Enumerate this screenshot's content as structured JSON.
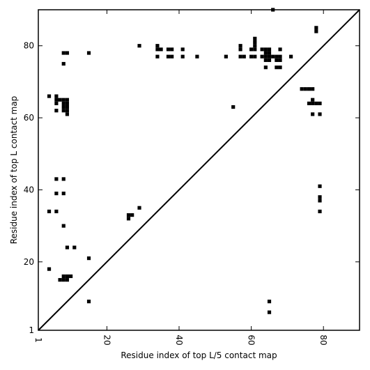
{
  "chart_data": {
    "type": "scatter",
    "marker": "square",
    "xlabel": "Residue index of top L/5 contact map",
    "ylabel": "Residue index of top L contact map",
    "xlim": [
      1,
      90
    ],
    "ylim": [
      1,
      90
    ],
    "x_ticks": [
      1,
      20,
      40,
      60,
      80
    ],
    "y_ticks": [
      1,
      20,
      40,
      60,
      80
    ],
    "diagonal": true,
    "grid": false,
    "colors": {
      "marker": "#000000",
      "axis": "#000000",
      "background": "#ffffff"
    },
    "points": [
      [
        66,
        90
      ],
      [
        78,
        85
      ],
      [
        78,
        84
      ],
      [
        29,
        80
      ],
      [
        34,
        80
      ],
      [
        57,
        80
      ],
      [
        61,
        82
      ],
      [
        61,
        81
      ],
      [
        61,
        80
      ],
      [
        8,
        78
      ],
      [
        9,
        78
      ],
      [
        15,
        78
      ],
      [
        34,
        79
      ],
      [
        35,
        79
      ],
      [
        37,
        79
      ],
      [
        38,
        79
      ],
      [
        41,
        79
      ],
      [
        57,
        79
      ],
      [
        60,
        79
      ],
      [
        61,
        79
      ],
      [
        63,
        79
      ],
      [
        64,
        79
      ],
      [
        65,
        79
      ],
      [
        68,
        79
      ],
      [
        34,
        77
      ],
      [
        37,
        77
      ],
      [
        38,
        77
      ],
      [
        41,
        77
      ],
      [
        45,
        77
      ],
      [
        53,
        77
      ],
      [
        57,
        77
      ],
      [
        58,
        77
      ],
      [
        60,
        77
      ],
      [
        61,
        77
      ],
      [
        63,
        77
      ],
      [
        64,
        77
      ],
      [
        65,
        77
      ],
      [
        66,
        77
      ],
      [
        67,
        77
      ],
      [
        68,
        77
      ],
      [
        71,
        77
      ],
      [
        64,
        78
      ],
      [
        65,
        78
      ],
      [
        64,
        76
      ],
      [
        65,
        76
      ],
      [
        67,
        76
      ],
      [
        68,
        76
      ],
      [
        8,
        75
      ],
      [
        64,
        74
      ],
      [
        67,
        74
      ],
      [
        68,
        74
      ],
      [
        4,
        66
      ],
      [
        6,
        66
      ],
      [
        6,
        65
      ],
      [
        7,
        65
      ],
      [
        8,
        65
      ],
      [
        9,
        65
      ],
      [
        6,
        64
      ],
      [
        8,
        64
      ],
      [
        9,
        64
      ],
      [
        8,
        63
      ],
      [
        9,
        63
      ],
      [
        6,
        62
      ],
      [
        8,
        62
      ],
      [
        9,
        62
      ],
      [
        9,
        61
      ],
      [
        55,
        63
      ],
      [
        74,
        68
      ],
      [
        75,
        68
      ],
      [
        76,
        68
      ],
      [
        77,
        68
      ],
      [
        77,
        65
      ],
      [
        76,
        64
      ],
      [
        77,
        64
      ],
      [
        78,
        64
      ],
      [
        79,
        64
      ],
      [
        77,
        61
      ],
      [
        79,
        61
      ],
      [
        6,
        43
      ],
      [
        8,
        43
      ],
      [
        79,
        41
      ],
      [
        6,
        39
      ],
      [
        8,
        39
      ],
      [
        79,
        38
      ],
      [
        79,
        37
      ],
      [
        29,
        35
      ],
      [
        4,
        34
      ],
      [
        6,
        34
      ],
      [
        79,
        34
      ],
      [
        26,
        33
      ],
      [
        27,
        33
      ],
      [
        26,
        32
      ],
      [
        8,
        30
      ],
      [
        9,
        24
      ],
      [
        11,
        24
      ],
      [
        15,
        21
      ],
      [
        4,
        18
      ],
      [
        8,
        16
      ],
      [
        9,
        16
      ],
      [
        10,
        16
      ],
      [
        7,
        15
      ],
      [
        8,
        15
      ],
      [
        9,
        15
      ],
      [
        15,
        9
      ],
      [
        65,
        9
      ],
      [
        65,
        6
      ]
    ]
  }
}
